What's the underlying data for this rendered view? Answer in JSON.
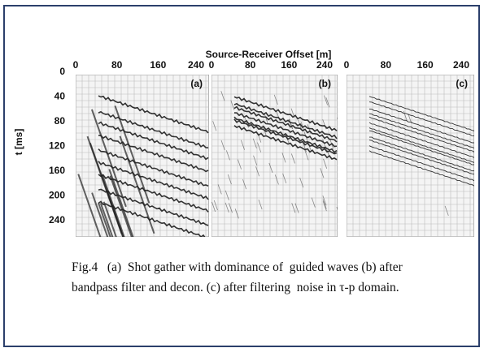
{
  "figure": {
    "x_axis_title": "Source-Receiver Offset [m]",
    "y_axis_title": "t [ms]",
    "y_ticks": [
      0,
      40,
      80,
      120,
      160,
      200,
      240
    ],
    "panels": [
      {
        "label": "(a)",
        "x_ticks": [
          0,
          80,
          160,
          240
        ]
      },
      {
        "label": "(b)",
        "x_ticks": [
          0,
          80,
          160,
          240
        ]
      },
      {
        "label": "(c)",
        "x_ticks": [
          0,
          80,
          160,
          240
        ]
      }
    ]
  },
  "caption": {
    "lines": [
      "Fig.4   (a)  Shot gather with dominance of  guided waves (b) after",
      "bandpass filter and decon. (c) after filtering  noise in τ-p domain."
    ]
  }
}
